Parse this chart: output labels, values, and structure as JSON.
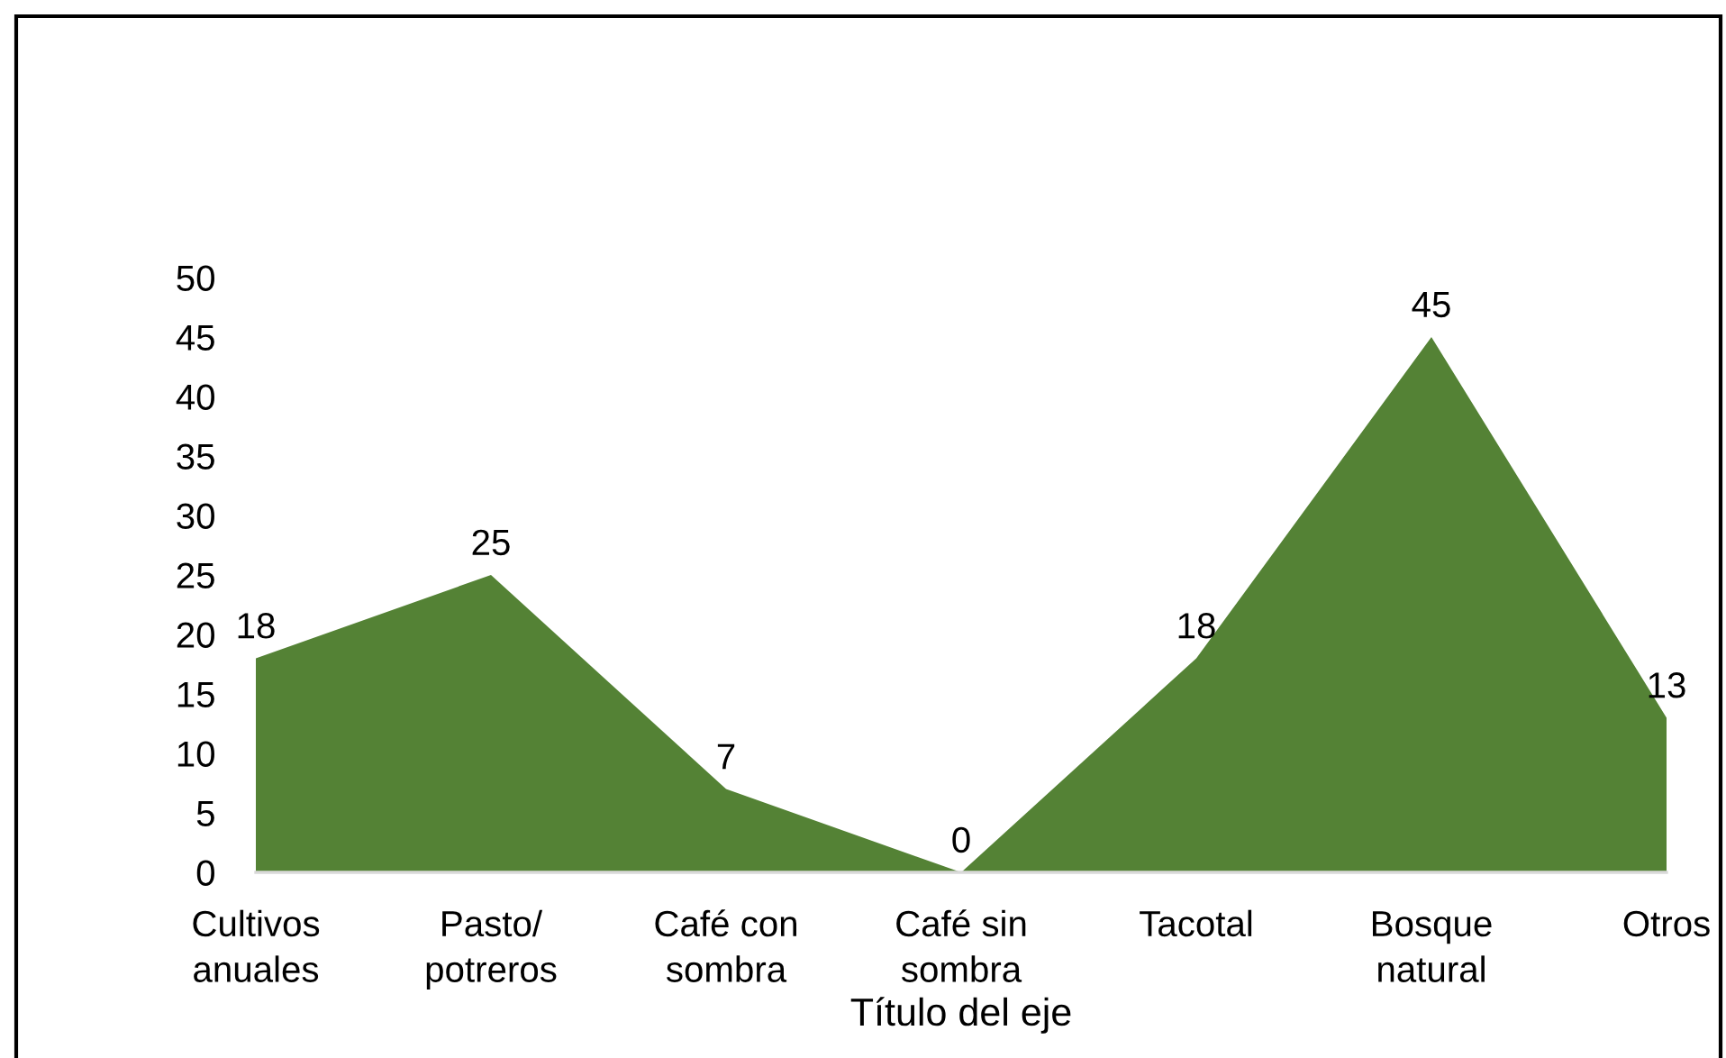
{
  "chart_data": {
    "type": "area",
    "xlabel": "Título del eje",
    "categories": [
      "Cultivos\nanuales",
      "Pasto/\npotreros",
      "Café con\nsombra",
      "Café sin\nsombra",
      "Tacotal",
      "Bosque\nnatural",
      "Otros"
    ],
    "values": [
      18,
      25,
      7,
      0,
      18,
      45,
      13
    ],
    "color": "#548235",
    "ylim": [
      0,
      50
    ],
    "yticks": [
      0,
      5,
      10,
      15,
      20,
      25,
      30,
      35,
      40,
      45,
      50
    ],
    "data_labels": true
  }
}
